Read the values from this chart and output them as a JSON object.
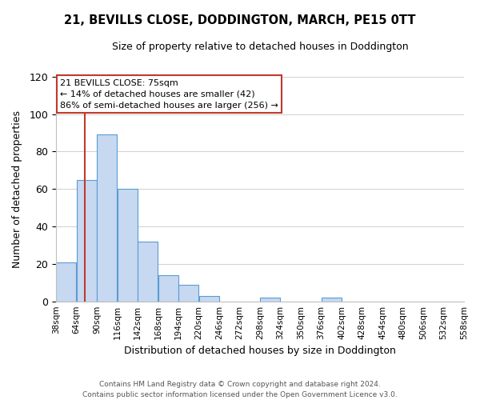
{
  "title": "21, BEVILLS CLOSE, DODDINGTON, MARCH, PE15 0TT",
  "subtitle": "Size of property relative to detached houses in Doddington",
  "xlabel": "Distribution of detached houses by size in Doddington",
  "ylabel": "Number of detached properties",
  "bin_edges": [
    38,
    64,
    90,
    116,
    142,
    168,
    194,
    220,
    246,
    272,
    298,
    324,
    350,
    376,
    402,
    428,
    454,
    480,
    506,
    532,
    558
  ],
  "counts": [
    21,
    65,
    89,
    60,
    32,
    14,
    9,
    3,
    0,
    0,
    2,
    0,
    0,
    2,
    0,
    0,
    0,
    0,
    0,
    0
  ],
  "bar_color": "#c6d9f0",
  "bar_edge_color": "#5b9bd5",
  "vline_x": 75,
  "vline_color": "#c0392b",
  "ylim": [
    0,
    120
  ],
  "yticks": [
    0,
    20,
    40,
    60,
    80,
    100,
    120
  ],
  "annotation_title": "21 BEVILLS CLOSE: 75sqm",
  "annotation_line1": "← 14% of detached houses are smaller (42)",
  "annotation_line2": "86% of semi-detached houses are larger (256) →",
  "annotation_box_color": "#ffffff",
  "annotation_box_edge": "#c0392b",
  "footer_line1": "Contains HM Land Registry data © Crown copyright and database right 2024.",
  "footer_line2": "Contains public sector information licensed under the Open Government Licence v3.0.",
  "tick_labels": [
    "38sqm",
    "64sqm",
    "90sqm",
    "116sqm",
    "142sqm",
    "168sqm",
    "194sqm",
    "220sqm",
    "246sqm",
    "272sqm",
    "298sqm",
    "324sqm",
    "350sqm",
    "376sqm",
    "402sqm",
    "428sqm",
    "454sqm",
    "480sqm",
    "506sqm",
    "532sqm",
    "558sqm"
  ]
}
